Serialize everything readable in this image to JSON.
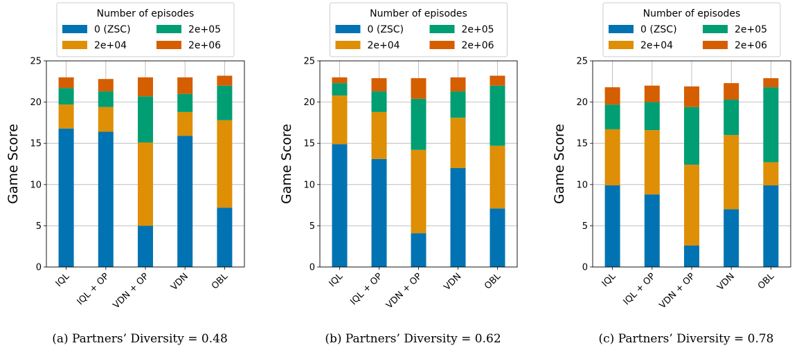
{
  "chart_data": [
    {
      "type": "bar",
      "stacked": true,
      "caption": "(a) Partners’ Diversity = 0.48",
      "categories": [
        "IQL",
        "IQL + OP",
        "VDN + OP",
        "VDN",
        "OBL"
      ],
      "ylabel": "Game Score",
      "ylim": [
        0,
        25
      ],
      "yticks": [
        "0",
        "5",
        "10",
        "15",
        "20",
        "25"
      ],
      "grid": true,
      "legend": {
        "title": "Number of episodes",
        "placement": "top-center"
      },
      "series": [
        {
          "name": "0 (ZSC)",
          "values": [
            16.8,
            16.4,
            5.0,
            15.9,
            7.2
          ]
        },
        {
          "name": "2e+04",
          "values": [
            2.9,
            3.0,
            10.1,
            2.9,
            10.6
          ]
        },
        {
          "name": "2e+05",
          "values": [
            2.0,
            1.9,
            5.6,
            2.2,
            4.2
          ]
        },
        {
          "name": "2e+06",
          "values": [
            1.3,
            1.5,
            2.3,
            2.0,
            1.2
          ]
        }
      ]
    },
    {
      "type": "bar",
      "stacked": true,
      "caption": "(b) Partners’ Diversity = 0.62",
      "categories": [
        "IQL",
        "IQL + OP",
        "VDN + OP",
        "VDN",
        "OBL"
      ],
      "ylabel": "Game Score",
      "ylim": [
        0,
        25
      ],
      "yticks": [
        "0",
        "5",
        "10",
        "15",
        "20",
        "25"
      ],
      "grid": true,
      "legend": {
        "title": "Number of episodes",
        "placement": "top-center"
      },
      "series": [
        {
          "name": "0 (ZSC)",
          "values": [
            14.9,
            13.1,
            4.1,
            12.0,
            7.1
          ]
        },
        {
          "name": "2e+04",
          "values": [
            5.9,
            5.7,
            10.1,
            6.1,
            7.6
          ]
        },
        {
          "name": "2e+05",
          "values": [
            1.5,
            2.5,
            6.2,
            3.2,
            7.3
          ]
        },
        {
          "name": "2e+06",
          "values": [
            0.7,
            1.6,
            2.5,
            1.7,
            1.2
          ]
        }
      ]
    },
    {
      "type": "bar",
      "stacked": true,
      "caption": "(c) Partners’ Diversity = 0.78",
      "categories": [
        "IQL",
        "IQL + OP",
        "VDN + OP",
        "VDN",
        "OBL"
      ],
      "ylabel": "Game Score",
      "ylim": [
        0,
        25
      ],
      "yticks": [
        "0",
        "5",
        "10",
        "15",
        "20",
        "25"
      ],
      "grid": true,
      "legend": {
        "title": "Number of episodes",
        "placement": "top-center"
      },
      "series": [
        {
          "name": "0 (ZSC)",
          "values": [
            9.9,
            8.8,
            2.6,
            7.0,
            9.9
          ]
        },
        {
          "name": "2e+04",
          "values": [
            6.8,
            7.8,
            9.8,
            9.0,
            2.8
          ]
        },
        {
          "name": "2e+05",
          "values": [
            3.0,
            3.4,
            7.0,
            4.3,
            9.1
          ]
        },
        {
          "name": "2e+06",
          "values": [
            2.1,
            2.0,
            2.5,
            2.0,
            1.1
          ]
        }
      ]
    }
  ],
  "colors": [
    "#0173b2",
    "#de8f05",
    "#029e73",
    "#d55e00"
  ]
}
